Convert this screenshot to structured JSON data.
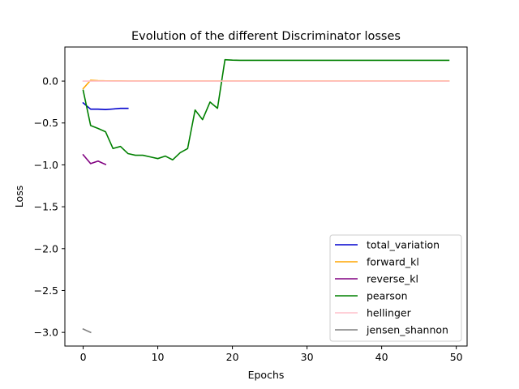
{
  "chart_data": {
    "type": "line",
    "title": "Evolution of the different Discriminator losses",
    "xlabel": "Epochs",
    "ylabel": "Loss",
    "xlim": [
      -2.45,
      51.45
    ],
    "ylim": [
      -3.163,
      0.407
    ],
    "xticks": [
      0,
      10,
      20,
      30,
      40,
      50
    ],
    "xtick_labels": [
      "0",
      "10",
      "20",
      "30",
      "40",
      "50"
    ],
    "yticks": [
      0.0,
      -0.5,
      -1.0,
      -1.5,
      -2.0,
      -2.5,
      -3.0
    ],
    "ytick_labels": [
      "0.0",
      "−0.5",
      "−1.0",
      "−1.5",
      "−2.0",
      "−2.5",
      "−3.0"
    ],
    "grid": false,
    "legend_position": "lower right",
    "series": [
      {
        "name": "total_variation",
        "color": "#0000cd",
        "x": [
          0,
          1,
          2,
          3,
          4,
          5,
          6
        ],
        "y": [
          -0.26,
          -0.335,
          -0.335,
          -0.34,
          -0.333,
          -0.325,
          -0.325
        ]
      },
      {
        "name": "forward_kl",
        "color": "#ffa500",
        "x": [
          0,
          1,
          2,
          3,
          4,
          5,
          6,
          7,
          8,
          9,
          10,
          11,
          12,
          13,
          14,
          15,
          16,
          17,
          18,
          19,
          20,
          21,
          22,
          23,
          24,
          25,
          26,
          27,
          28,
          29,
          30,
          31,
          32,
          33,
          34,
          35,
          36,
          37,
          38,
          39,
          40,
          41,
          42,
          43,
          44,
          45,
          46,
          47,
          48,
          49
        ],
        "y": [
          -0.09,
          0.01,
          0.005,
          0.003,
          0.002,
          0.002,
          0.001,
          0.001,
          0.001,
          0.001,
          0.001,
          0.001,
          0.001,
          0.001,
          0.001,
          0.001,
          0.001,
          0.001,
          0.001,
          0.001,
          0.001,
          0.001,
          0.001,
          0.001,
          0.001,
          0.001,
          0.001,
          0.001,
          0.001,
          0.001,
          0.001,
          0.001,
          0.001,
          0.001,
          0.001,
          0.001,
          0.001,
          0.001,
          0.001,
          0.001,
          0.001,
          0.001,
          0.001,
          0.001,
          0.001,
          0.001,
          0.001,
          0.001,
          0.001,
          0.001
        ]
      },
      {
        "name": "reverse_kl",
        "color": "#800080",
        "x": [
          0,
          1,
          2,
          3
        ],
        "y": [
          -0.88,
          -0.985,
          -0.955,
          -0.995
        ]
      },
      {
        "name": "pearson",
        "color": "#008000",
        "x": [
          0,
          1,
          2,
          3,
          4,
          5,
          6,
          7,
          8,
          9,
          10,
          11,
          12,
          13,
          14,
          15,
          16,
          17,
          18,
          19,
          20,
          21,
          22,
          23,
          24,
          25,
          26,
          27,
          28,
          29,
          30,
          31,
          32,
          33,
          34,
          35,
          36,
          37,
          38,
          39,
          40,
          41,
          42,
          43,
          44,
          45,
          46,
          47,
          48,
          49
        ],
        "y": [
          -0.11,
          -0.53,
          -0.565,
          -0.605,
          -0.805,
          -0.78,
          -0.865,
          -0.885,
          -0.885,
          -0.905,
          -0.925,
          -0.895,
          -0.94,
          -0.855,
          -0.805,
          -0.345,
          -0.46,
          -0.25,
          -0.325,
          0.255,
          0.25,
          0.248,
          0.248,
          0.248,
          0.248,
          0.248,
          0.248,
          0.248,
          0.248,
          0.248,
          0.248,
          0.248,
          0.248,
          0.248,
          0.248,
          0.248,
          0.248,
          0.248,
          0.248,
          0.248,
          0.248,
          0.248,
          0.248,
          0.248,
          0.248,
          0.248,
          0.248,
          0.248,
          0.248,
          0.248
        ]
      },
      {
        "name": "hellinger",
        "color": "#ffc0cb",
        "x": [
          0,
          1,
          2,
          3,
          4,
          5,
          6,
          7,
          8,
          9,
          10,
          11,
          12,
          13,
          14,
          15,
          16,
          17,
          18,
          19,
          20,
          21,
          22,
          23,
          24,
          25,
          26,
          27,
          28,
          29,
          30,
          31,
          32,
          33,
          34,
          35,
          36,
          37,
          38,
          39,
          40,
          41,
          42,
          43,
          44,
          45,
          46,
          47,
          48,
          49
        ],
        "y": [
          0.0,
          0.0,
          0.0,
          0.0,
          0.0,
          0.0,
          0.0,
          0.0,
          0.0,
          0.0,
          0.0,
          0.0,
          0.0,
          0.0,
          0.0,
          0.0,
          0.0,
          0.0,
          0.0,
          0.0,
          0.0,
          0.0,
          0.0,
          0.0,
          0.0,
          0.0,
          0.0,
          0.0,
          0.0,
          0.0,
          0.0,
          0.0,
          0.0,
          0.0,
          0.0,
          0.0,
          0.0,
          0.0,
          0.0,
          0.0,
          0.0,
          0.0,
          0.0,
          0.0,
          0.0,
          0.0,
          0.0,
          0.0,
          0.0,
          0.0
        ]
      },
      {
        "name": "jensen_shannon",
        "color": "#808080",
        "x": [
          0,
          1
        ],
        "y": [
          -2.96,
          -3.0
        ]
      }
    ]
  }
}
